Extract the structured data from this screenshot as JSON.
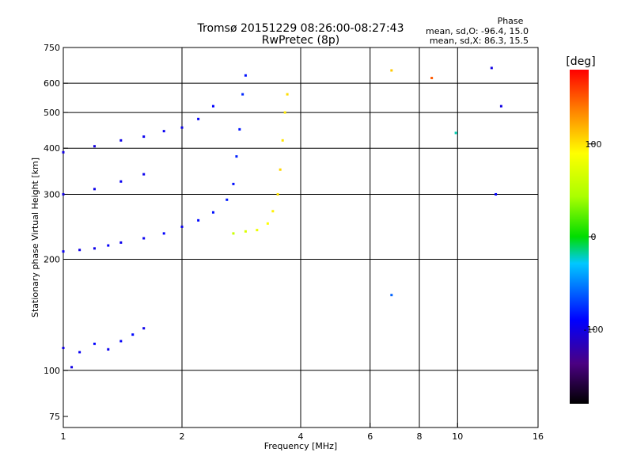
{
  "chart_data": {
    "type": "scatter",
    "title": "Tromsø 20151229 08:26:00-08:27:43",
    "subtitle": "RwPretec (8p)",
    "phase_stats": {
      "heading": "Phase",
      "line1": "mean, sd,O: -96.4, 15.0",
      "line2": "mean, sd,X:  86.3, 15.5"
    },
    "xlabel": "Frequency [MHz]",
    "ylabel": "Stationary phase Virtual Height [km]",
    "x_scale": "log",
    "y_scale": "log",
    "xlim": [
      1,
      16
    ],
    "ylim": [
      70,
      750
    ],
    "xticks": [
      1,
      2,
      4,
      6,
      8,
      10,
      16
    ],
    "yticks": [
      75,
      100,
      200,
      300,
      400,
      500,
      600,
      750
    ],
    "xgrid": [
      2,
      4,
      6,
      8,
      10
    ],
    "ygrid": [
      100,
      200,
      300,
      400,
      500,
      600
    ],
    "grid": true,
    "colorbar": {
      "label": "[deg]",
      "range": [
        -180,
        180
      ],
      "ticks": [
        -100,
        0,
        100
      ],
      "colormap": "rainbow"
    },
    "series": [
      {
        "points": [
          [
            1.0,
            210,
            -95
          ],
          [
            1.1,
            212,
            -100
          ],
          [
            1.2,
            214,
            -98
          ],
          [
            1.3,
            218,
            -92
          ],
          [
            1.4,
            222,
            -97
          ],
          [
            1.6,
            228,
            -95
          ],
          [
            1.8,
            235,
            -90
          ],
          [
            2.0,
            245,
            -96
          ],
          [
            2.2,
            255,
            -88
          ],
          [
            2.4,
            268,
            -85
          ],
          [
            2.6,
            290,
            -82
          ],
          [
            2.7,
            320,
            -86
          ],
          [
            2.75,
            380,
            -80
          ],
          [
            2.8,
            450,
            -84
          ],
          [
            2.85,
            560,
            -78
          ],
          [
            2.9,
            630,
            -85
          ]
        ]
      },
      {
        "points": [
          [
            1.0,
            390,
            -100
          ],
          [
            1.2,
            405,
            -102
          ],
          [
            1.4,
            420,
            -98
          ],
          [
            1.6,
            430,
            -96
          ],
          [
            1.8,
            445,
            -95
          ],
          [
            2.0,
            455,
            -97
          ],
          [
            2.2,
            480,
            -92
          ],
          [
            2.4,
            520,
            -90
          ]
        ]
      },
      {
        "points": [
          [
            1.0,
            300,
            -100
          ],
          [
            1.2,
            310,
            -98
          ],
          [
            1.4,
            325,
            -95
          ],
          [
            1.6,
            340,
            -96
          ]
        ]
      },
      {
        "points": [
          [
            1.0,
            115,
            -100
          ],
          [
            1.1,
            112,
            -95
          ],
          [
            1.2,
            118,
            -90
          ],
          [
            1.3,
            114,
            -96
          ],
          [
            1.4,
            120,
            -92
          ],
          [
            1.5,
            125,
            -88
          ],
          [
            1.6,
            130,
            -98
          ],
          [
            1.05,
            102,
            -100
          ]
        ]
      },
      {
        "points": [
          [
            2.7,
            235,
            60
          ],
          [
            2.9,
            238,
            70
          ],
          [
            3.1,
            240,
            80
          ],
          [
            3.3,
            250,
            90
          ],
          [
            3.4,
            270,
            95
          ],
          [
            3.5,
            300,
            100
          ],
          [
            3.55,
            350,
            105
          ],
          [
            3.6,
            420,
            100
          ],
          [
            3.65,
            500,
            98
          ],
          [
            3.7,
            560,
            102
          ]
        ]
      },
      {
        "points": [
          [
            6.8,
            650,
            110
          ],
          [
            8.6,
            620,
            150
          ],
          [
            12.2,
            660,
            -100
          ],
          [
            12.9,
            520,
            -100
          ],
          [
            6.8,
            160,
            -60
          ],
          [
            9.9,
            440,
            -20
          ],
          [
            12.5,
            300,
            -90
          ]
        ]
      }
    ]
  }
}
